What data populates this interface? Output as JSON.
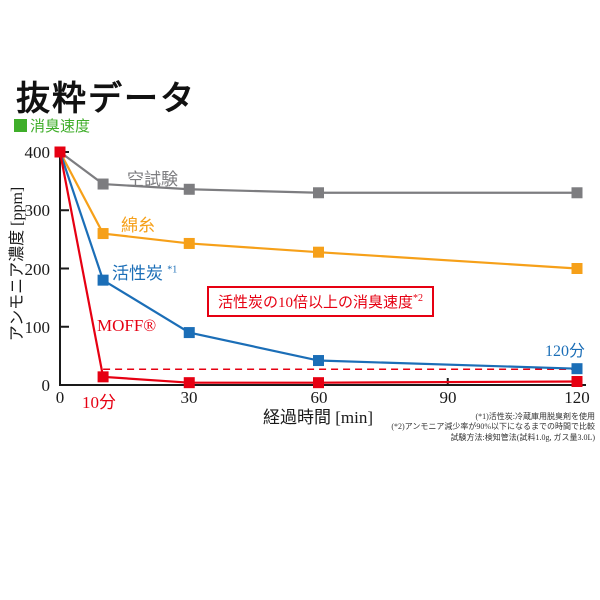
{
  "page": {
    "title": "抜粋データ"
  },
  "legend": {
    "label": "消臭速度",
    "color": "#3fae2a"
  },
  "chart_data": {
    "type": "line",
    "title": "消臭速度",
    "xlabel": "経過時間 [min]",
    "ylabel": "アンモニア濃度 [ppm]",
    "x": [
      0,
      10,
      30,
      60,
      120
    ],
    "xlim": [
      0,
      120
    ],
    "ylim": [
      0,
      400
    ],
    "x_ticks": [
      0,
      30,
      60,
      90,
      120
    ],
    "y_ticks": [
      400,
      300,
      200,
      100,
      0
    ],
    "grid": false,
    "series": [
      {
        "name": "空試験",
        "suffix": "",
        "color": "#7d7d80",
        "values": [
          400,
          345,
          336,
          330,
          330
        ]
      },
      {
        "name": "綿糸",
        "suffix": "",
        "color": "#f6a019",
        "values": [
          400,
          260,
          243,
          228,
          200
        ]
      },
      {
        "name": "活性炭",
        "suffix": "*1",
        "color": "#1b6eb7",
        "values": [
          400,
          180,
          90,
          42,
          28
        ]
      },
      {
        "name": "MOFF®",
        "suffix": "",
        "color": "#e60012",
        "values": [
          400,
          14,
          4,
          4,
          6
        ]
      }
    ],
    "dashed_line": {
      "y": 27,
      "x_start": 10,
      "x_end": 120,
      "color": "#e60012"
    },
    "annotations": {
      "x_label_10min": "10分",
      "end_label_120min": "120分",
      "callout": "活性炭の10倍以上の消臭速度",
      "callout_sup": "*2"
    }
  },
  "footnotes": [
    "(*1)活性炭:冷蔵庫用脱臭剤を使用",
    "(*2)アンモニア減少率が90%以下になるまでの時間で比較",
    "試験方法:検知管法(試料1.0g, ガス量3.0L)"
  ]
}
